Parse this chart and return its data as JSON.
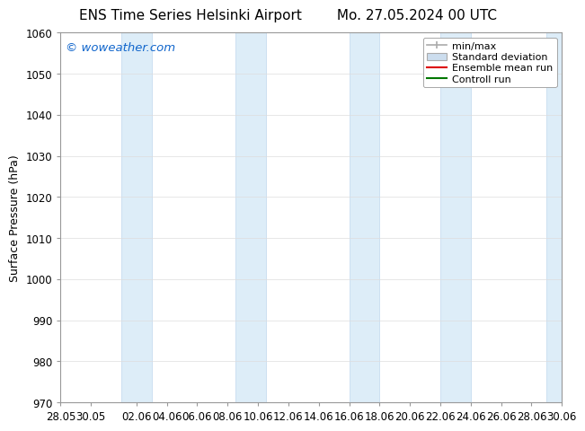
{
  "title_left": "ENS Time Series Helsinki Airport",
  "title_right": "Mo. 27.05.2024 00 UTC",
  "ylabel": "Surface Pressure (hPa)",
  "ylim": [
    970,
    1060
  ],
  "yticks": [
    970,
    980,
    990,
    1000,
    1010,
    1020,
    1030,
    1040,
    1050,
    1060
  ],
  "xtick_labels": [
    "28.05",
    "30.05",
    "02.06",
    "04.06",
    "06.06",
    "08.06",
    "10.06",
    "12.06",
    "14.06",
    "16.06",
    "18.06",
    "20.06",
    "22.06",
    "24.06",
    "26.06",
    "28.06",
    "30.06"
  ],
  "xtick_positions": [
    0,
    2,
    5,
    7,
    9,
    11,
    13,
    15,
    17,
    19,
    21,
    23,
    25,
    27,
    29,
    31,
    33
  ],
  "shaded_band_color": "#ddedf8",
  "shaded_band_edge_color": "#c0d8ee",
  "background_color": "#ffffff",
  "plot_bg_color": "#ffffff",
  "watermark_text": "© woweather.com",
  "watermark_color": "#1166cc",
  "title_fontsize": 11,
  "axis_label_fontsize": 9,
  "tick_fontsize": 8.5,
  "x_start": 0,
  "x_end": 33,
  "band_starts": [
    4.0,
    11.5,
    19.0,
    25.0,
    32.0
  ],
  "band_ends": [
    6.0,
    13.5,
    21.0,
    27.0,
    34.0
  ],
  "grid_color": "#dddddd",
  "spine_color": "#999999",
  "legend_fontsize": 8,
  "minmax_color": "#aaaaaa",
  "stddev_color": "#ccddee",
  "mean_color": "#dd0000",
  "control_color": "#007700"
}
